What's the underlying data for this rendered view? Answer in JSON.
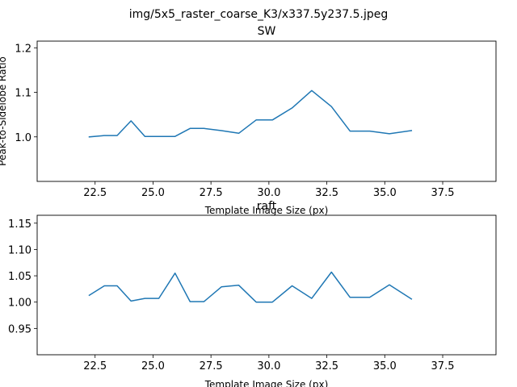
{
  "figure": {
    "suptitle": "img/5x5_raster_coarse_K3/x337.5y237.5.jpeg"
  },
  "chart_data": [
    {
      "type": "line",
      "title": "SW",
      "xlabel": "Template Image Size (px)",
      "ylabel": "Peak-to-Sidelobe Ratio",
      "xlim": [
        20.0,
        39.8
      ],
      "ylim": [
        0.9,
        1.215
      ],
      "xticks": [
        22.5,
        25.0,
        27.5,
        30.0,
        32.5,
        35.0,
        37.5
      ],
      "xtick_labels": [
        "22.5",
        "25.0",
        "27.5",
        "30.0",
        "32.5",
        "35.0",
        "37.5"
      ],
      "yticks": [
        1.0,
        1.1,
        1.2
      ],
      "ytick_labels": [
        "1.0",
        "1.1",
        "1.2"
      ],
      "grid": false,
      "color": "#1f77b4",
      "series": [
        {
          "x": [
            22.25,
            22.9,
            23.45,
            24.05,
            24.65,
            25.25,
            25.95,
            26.6,
            27.2,
            27.95,
            28.7,
            29.45,
            30.15,
            31.0,
            31.85,
            32.7,
            33.5,
            34.35,
            35.2,
            36.15
          ],
          "y": [
            1.0,
            1.003,
            1.003,
            1.036,
            1.001,
            1.001,
            1.001,
            1.019,
            1.019,
            1.014,
            1.008,
            1.038,
            1.038,
            1.065,
            1.104,
            1.068,
            1.013,
            1.013,
            1.007,
            1.014
          ]
        }
      ]
    },
    {
      "type": "line",
      "title": "raft",
      "xlabel": "Template Image Size (px)",
      "ylabel": "",
      "xlim": [
        20.0,
        39.8
      ],
      "ylim": [
        0.9,
        1.165
      ],
      "xticks": [
        22.5,
        25.0,
        27.5,
        30.0,
        32.5,
        35.0,
        37.5
      ],
      "xtick_labels": [
        "22.5",
        "25.0",
        "27.5",
        "30.0",
        "32.5",
        "35.0",
        "37.5"
      ],
      "yticks": [
        0.95,
        1.0,
        1.05,
        1.1,
        1.15
      ],
      "ytick_labels": [
        "0.95",
        "1.00",
        "1.05",
        "1.10",
        "1.15"
      ],
      "grid": false,
      "color": "#1f77b4",
      "series": [
        {
          "x": [
            22.25,
            22.9,
            23.45,
            24.05,
            24.65,
            25.25,
            25.95,
            26.6,
            27.2,
            27.95,
            28.7,
            29.45,
            30.15,
            31.0,
            31.85,
            32.7,
            33.5,
            34.35,
            35.2,
            36.15
          ],
          "y": [
            1.013,
            1.031,
            1.031,
            1.002,
            1.007,
            1.007,
            1.055,
            1.001,
            1.001,
            1.029,
            1.032,
            1.0,
            1.0,
            1.031,
            1.007,
            1.057,
            1.009,
            1.009,
            1.033,
            1.006
          ]
        }
      ]
    }
  ]
}
